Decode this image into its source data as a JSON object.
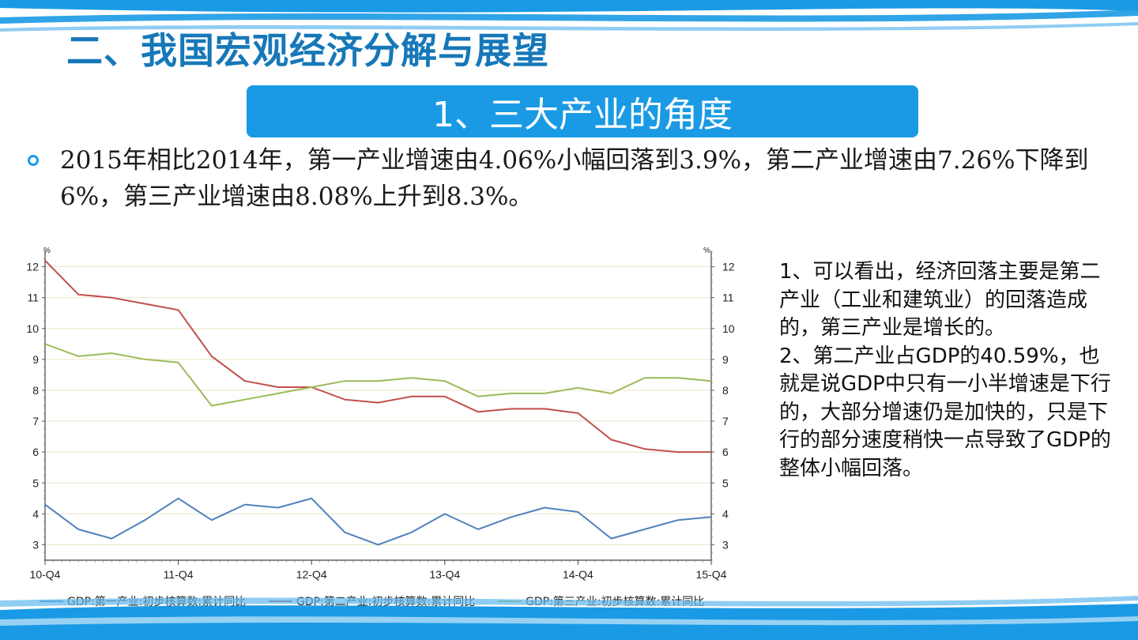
{
  "page": {
    "title": "二、我国宏观经济分解与展望",
    "subtitle": "1、三大产业的角度",
    "bullet": "2015年相比2014年，第一产业增速由4.06%小幅回落到3.9%，第二产业增速由7.26%下降到6%，第三产业增速由8.08%上升到8.3%。",
    "note_p1": "1、可以看出，经济回落主要是第二产业（工业和建筑业）的回落造成的，第三产业是增长的。",
    "note_p2": "2、第二产业占GDP的40.59%，也就是说GDP中只有一小半增速是下行的，大部分增速仍是加快的，只是下行的部分速度稍快一点导致了GDP的整体小幅回落。"
  },
  "colors": {
    "accent": "#1a9ae4",
    "title": "#1678b8",
    "series1": "#4f81bd",
    "series2": "#c0504d",
    "series3": "#9bbb59"
  },
  "chart_data": {
    "type": "line",
    "ylabel_left": "%",
    "ylabel_right": "%",
    "ylim": [
      2.5,
      12.5
    ],
    "yticks": [
      3,
      4,
      5,
      6,
      7,
      8,
      9,
      10,
      11,
      12
    ],
    "xlim": [
      0,
      20
    ],
    "x_tick_labels": [
      {
        "x": 0,
        "label": "10-Q4"
      },
      {
        "x": 4,
        "label": "11-Q4"
      },
      {
        "x": 8,
        "label": "12-Q4"
      },
      {
        "x": 12,
        "label": "13-Q4"
      },
      {
        "x": 16,
        "label": "14-Q4"
      },
      {
        "x": 20,
        "label": "15-Q4"
      }
    ],
    "grid": true,
    "legend_position": "bottom",
    "series": [
      {
        "name": "GDP:第一产业:初步核算数:累计同比",
        "color": "#4f81bd",
        "x": [
          0,
          1,
          2,
          3,
          4,
          5,
          6,
          7,
          8,
          9,
          10,
          11,
          12,
          13,
          14,
          15,
          16,
          17,
          18,
          19,
          20
        ],
        "values": [
          4.3,
          3.5,
          3.2,
          3.8,
          4.5,
          3.8,
          4.3,
          4.2,
          4.5,
          3.4,
          3.0,
          3.4,
          4.0,
          3.5,
          3.9,
          4.2,
          4.06,
          3.2,
          3.5,
          3.8,
          3.9
        ]
      },
      {
        "name": "GDP:第二产业:初步核算数:累计同比",
        "color": "#c0504d",
        "x": [
          0,
          1,
          2,
          3,
          4,
          5,
          6,
          7,
          8,
          9,
          10,
          11,
          12,
          13,
          14,
          15,
          16,
          17,
          18,
          19,
          20
        ],
        "values": [
          12.2,
          11.1,
          11.0,
          10.8,
          10.6,
          9.1,
          8.3,
          8.1,
          8.1,
          7.7,
          7.6,
          7.8,
          7.8,
          7.3,
          7.4,
          7.4,
          7.26,
          6.4,
          6.1,
          6.0,
          6.0
        ]
      },
      {
        "name": "GDP:第三产业:初步核算数:累计同比",
        "color": "#9bbb59",
        "x": [
          0,
          1,
          2,
          3,
          4,
          5,
          6,
          7,
          8,
          9,
          10,
          11,
          12,
          13,
          14,
          15,
          16,
          17,
          18,
          19,
          20
        ],
        "values": [
          9.5,
          9.1,
          9.2,
          9.0,
          8.9,
          7.5,
          7.7,
          7.9,
          8.1,
          8.3,
          8.3,
          8.4,
          8.3,
          7.8,
          7.9,
          7.9,
          8.08,
          7.9,
          8.4,
          8.4,
          8.3
        ]
      }
    ]
  }
}
